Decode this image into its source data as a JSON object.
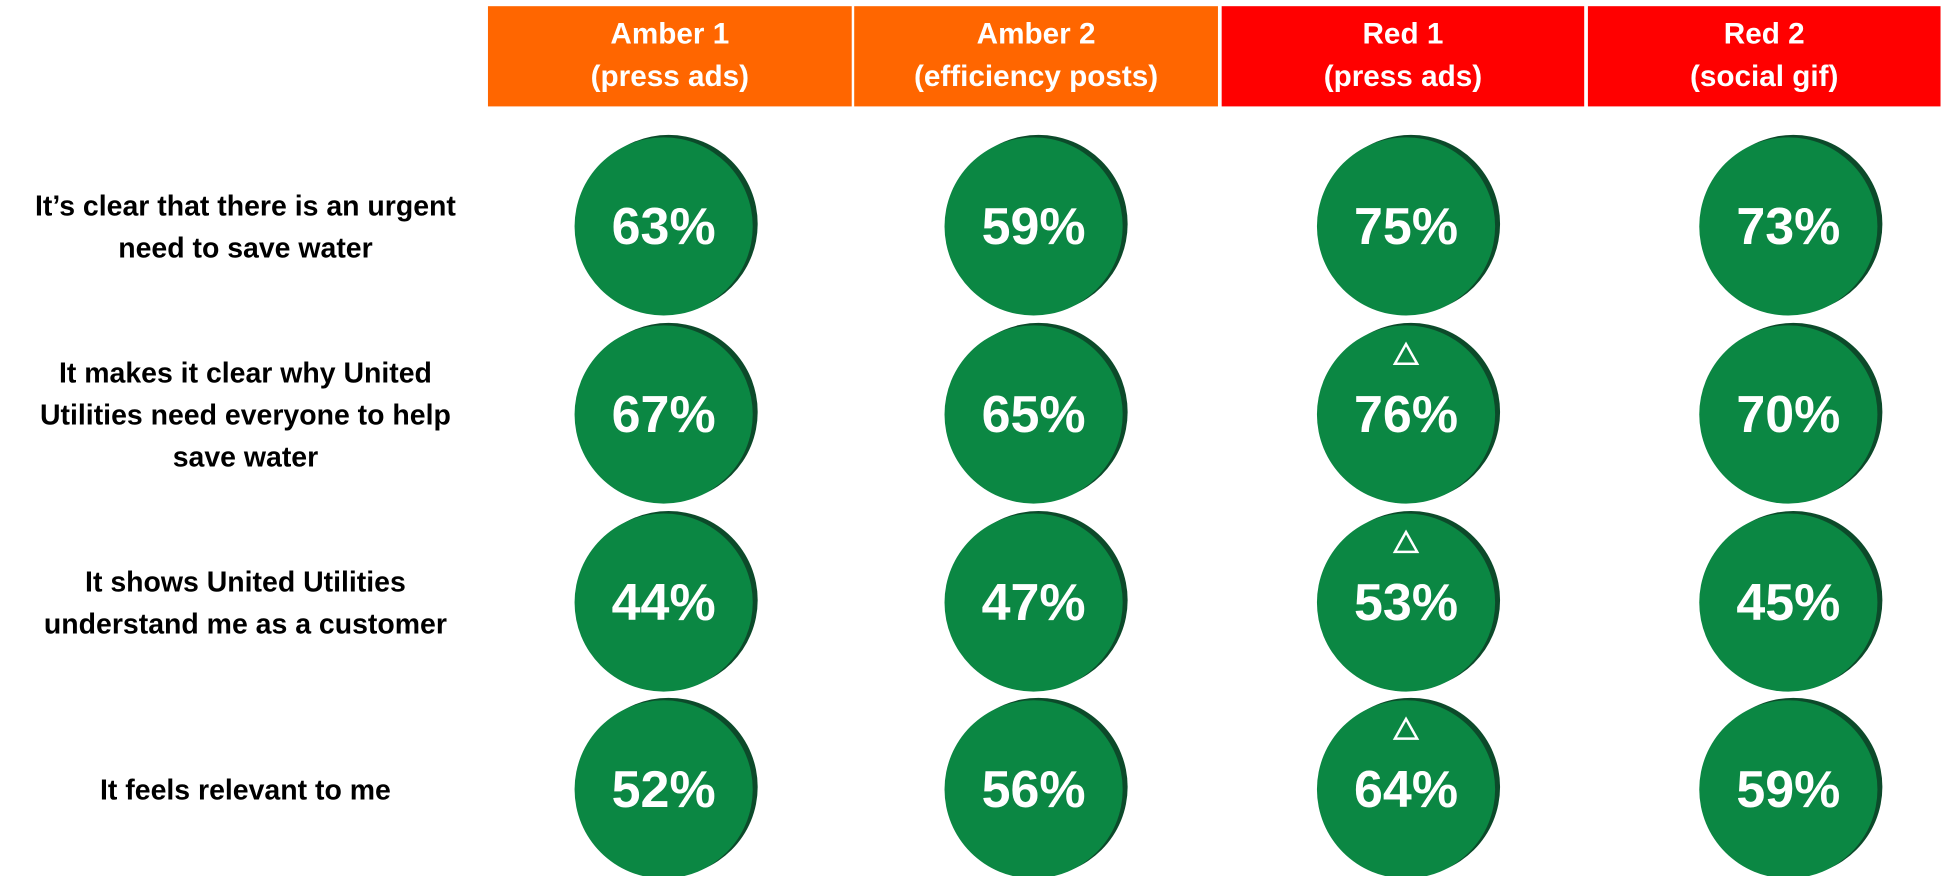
{
  "table": {
    "columns": [
      {
        "lines": [
          "Amber 1",
          "(press ads)"
        ],
        "color": "#ff6600"
      },
      {
        "lines": [
          "Amber 2",
          "(efficiency posts)"
        ],
        "color": "#ff6600"
      },
      {
        "lines": [
          "Red 1",
          "(press ads)"
        ],
        "color": "#ff0000"
      },
      {
        "lines": [
          "Red 2",
          "(social gif)"
        ],
        "color": "#ff0000"
      }
    ],
    "rows": [
      {
        "lines": [
          "It’s clear that there is an urgent",
          "need to save water"
        ],
        "cells": [
          {
            "text": "63%"
          },
          {
            "text": "59%"
          },
          {
            "text": "75%"
          },
          {
            "text": "73%"
          }
        ]
      },
      {
        "lines": [
          "It makes it clear why United",
          "Utilities need everyone to help",
          "save water"
        ],
        "cells": [
          {
            "text": "67%"
          },
          {
            "text": "65%"
          },
          {
            "text": "76%",
            "significant": true
          },
          {
            "text": "70%"
          }
        ]
      },
      {
        "lines": [
          "It shows United Utilities",
          "understand me as a customer"
        ],
        "cells": [
          {
            "text": "44%"
          },
          {
            "text": "47%"
          },
          {
            "text": "53%",
            "significant": true
          },
          {
            "text": "45%"
          }
        ]
      },
      {
        "lines": [
          "It feels relevant to me"
        ],
        "cells": [
          {
            "text": "52%"
          },
          {
            "text": "56%"
          },
          {
            "text": "64%",
            "significant": true
          },
          {
            "text": "59%"
          }
        ]
      }
    ],
    "circle_color": "#0b8743",
    "shadow_color": "#0c4a2a"
  }
}
